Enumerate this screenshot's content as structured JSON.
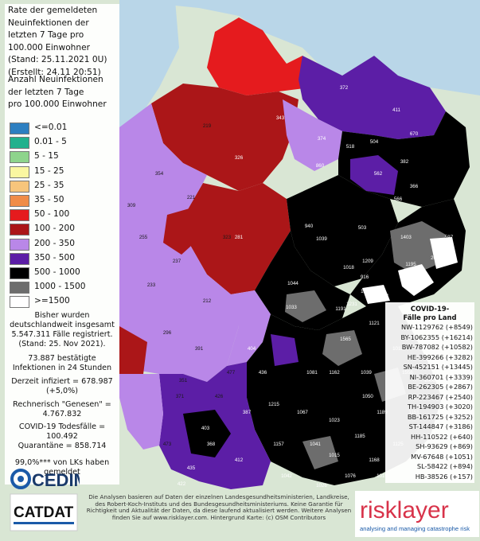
{
  "title": {
    "line1": "Rate der gemeldeten",
    "line2": "Neuinfektionen der",
    "line3": "letzten 7 Tage pro",
    "line4": "100.000 Einwohner",
    "line5": "(Stand: 25.11.2021 0U)",
    "line6": "(Erstellt: 24.11 20:51)"
  },
  "subtitle": {
    "line1": "Anzahl Neuinfektionen",
    "line2": "der letzten 7 Tage",
    "line3": "pro 100.000 Einwohner"
  },
  "legend": [
    {
      "label": "<=0.01",
      "color": "#2d7fc1"
    },
    {
      "label": "0.01 - 5",
      "color": "#21b18d"
    },
    {
      "label": "5 - 15",
      "color": "#8ed48c"
    },
    {
      "label": "15 - 25",
      "color": "#faf6a1"
    },
    {
      "label": "25 - 35",
      "color": "#f7c57c"
    },
    {
      "label": "35 - 50",
      "color": "#f08c48"
    },
    {
      "label": "50 - 100",
      "color": "#e51b1e"
    },
    {
      "label": "100 - 200",
      "color": "#ab1618"
    },
    {
      "label": "200 - 350",
      "color": "#b987e8"
    },
    {
      "label": "350 - 500",
      "color": "#5c1ea6"
    },
    {
      "label": "500 - 1000",
      "color": "#000000"
    },
    {
      "label": "1000 - 1500",
      "color": "#6d6d6d"
    },
    {
      "label": ">=1500",
      "color": "#ffffff"
    }
  ],
  "stats": {
    "reported": [
      "Bisher wurden",
      "deutschlandweit insgesamt",
      "5.547.311 Fälle registriert.",
      "(Stand: 25. Nov 2021)."
    ],
    "confirmed": [
      "73.887 bestätigte",
      "Infektionen in 24 Stunden"
    ],
    "infected": [
      "Derzeit infiziert = 678.987",
      "(+5,0%)"
    ],
    "recovered": [
      "Rechnerisch \"Genesen\" =",
      "4.767.832"
    ],
    "deaths": [
      "COVID-19 Todesfälle =",
      "100.492"
    ],
    "quarantine": "Quarantäne = 858.714",
    "reported_lks": [
      "99,0%*** von LKs haben",
      "gemeldet"
    ]
  },
  "state_panel": {
    "title": [
      "COVID-19-",
      "Fälle pro Land"
    ],
    "rows": [
      "NW-1129762 (+8549)",
      "BY-1062355 (+16214)",
      "BW-787082 (+10582)",
      "HE-399266 (+3282)",
      "SN-452151 (+13445)",
      "NI-360701 (+3339)",
      "BE-262305 (+2867)",
      "RP-223467 (+2540)",
      "TH-194903 (+3020)",
      "BB-161725 (+3252)",
      "ST-144847 (+3186)",
      "HH-110522 (+640)",
      "SH-93629 (+869)",
      "MV-67648 (+1051)",
      "SL-58422 (+894)",
      "HB-38526 (+157)"
    ]
  },
  "footer": [
    "Die Analysen basieren auf Daten der einzelnen Landesgesundheitsministerien, Landkreise,",
    "des Robert-Koch-Instituts und des Bundesgesundheitsministeriums. Keine Garantie für",
    "Richtigkeit und Aktualität der Daten, da diese laufend aktualisiert werden. Weitere Analysen",
    "finden Sie auf www.risklayer.com. Hintergrund Karte: (c) OSM Contributors"
  ],
  "logos": {
    "edim": "CEDIM",
    "catdat": "CATDAT",
    "risklayer_name": "risklayer",
    "risklayer_tagline": "analysing and managing catastrophe risk"
  },
  "map_labels": [
    "372",
    "411",
    "343",
    "374",
    "518",
    "504",
    "670",
    "562",
    "382",
    "366",
    "860",
    "940",
    "566",
    "503",
    "1403",
    "597",
    "1039",
    "1209",
    "1195",
    "2008",
    "1018",
    "916",
    "1044",
    "1994",
    "2041",
    "1522",
    "1191",
    "1231",
    "1121",
    "1030",
    "1033",
    "1565",
    "1556",
    "1067",
    "1189",
    "1023",
    "1185",
    "1041",
    "1015",
    "1125",
    "1168",
    "1042",
    "1076",
    "1026",
    "1151",
    "1157",
    "1039",
    "1006",
    "1081",
    "1013",
    "1162",
    "1050",
    "1019",
    "1215",
    "219",
    "326",
    "221",
    "323",
    "255",
    "354",
    "309",
    "237",
    "233",
    "212",
    "281",
    "296",
    "391",
    "351",
    "426",
    "403",
    "412",
    "435",
    "422",
    "473",
    "477",
    "387",
    "368",
    "371",
    "436",
    "404"
  ]
}
